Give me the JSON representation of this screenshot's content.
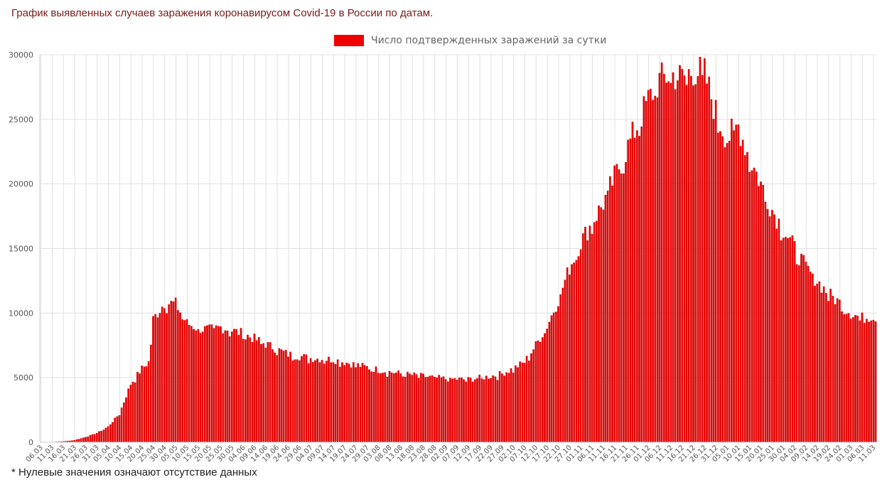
{
  "page": {
    "title": "График выявленных случаев заражения коронавирусом Covid-19 в России по датам.",
    "footnote": "* Нулевые значения означают отсутствие данных"
  },
  "colors": {
    "bar": "#ee0000",
    "bar_edge": "#b30000",
    "grid": "#e0e0e0",
    "axis_text": "#555555"
  },
  "chart_data": {
    "type": "bar",
    "title": "График выявленных случаев заражения коронавирусом Covid-19 в России по датам.",
    "legend": "Число подтвержденных заражений за сутки",
    "legend_position": "top-center",
    "ylim": [
      0,
      30000
    ],
    "yticks": [
      0,
      5000,
      10000,
      15000,
      20000,
      25000,
      30000
    ],
    "grid": true,
    "start_day": "2020-03-06",
    "xtick_labels": [
      "06.03",
      "11.03",
      "16.03",
      "21.03",
      "26.03",
      "31.03",
      "05.04",
      "10.04",
      "15.04",
      "20.04",
      "25.04",
      "30.04",
      "05.05",
      "10.05",
      "15.05",
      "20.05",
      "25.05",
      "30.05",
      "04.06",
      "09.06",
      "14.06",
      "19.06",
      "24.06",
      "29.06",
      "04.07",
      "09.07",
      "14.07",
      "19.07",
      "24.07",
      "29.07",
      "03.08",
      "08.08",
      "13.08",
      "18.08",
      "23.08",
      "28.08",
      "02.09",
      "07.09",
      "12.09",
      "17.09",
      "22.09",
      "27.09",
      "02.10",
      "07.10",
      "12.10",
      "17.10",
      "22.10",
      "27.10",
      "01.11",
      "06.11",
      "11.11",
      "16.11",
      "21.11",
      "26.11",
      "01.12",
      "06.12",
      "11.12",
      "16.12",
      "21.12",
      "26.12",
      "31.12",
      "05.01",
      "10.01",
      "15.01",
      "20.01",
      "25.01",
      "30.01",
      "04.02",
      "09.02",
      "14.02",
      "19.02",
      "24.02",
      "01.03",
      "06.03",
      "11.03"
    ],
    "anchor_days": [
      0,
      5,
      10,
      15,
      20,
      25,
      30,
      35,
      40,
      45,
      48,
      50,
      55,
      60,
      65,
      70,
      75,
      80,
      90,
      100,
      110,
      120,
      130,
      140,
      150,
      160,
      170,
      180,
      190,
      200,
      205,
      210,
      215,
      220,
      225,
      230,
      235,
      240,
      245,
      250,
      255,
      260,
      265,
      270,
      275,
      280,
      285,
      290,
      295,
      300,
      305,
      310,
      315,
      320,
      325,
      330,
      335,
      340,
      345,
      350,
      355,
      360,
      365,
      370
    ],
    "anchor_values": [
      3,
      10,
      60,
      150,
      400,
      700,
      1200,
      2200,
      4500,
      5700,
      6200,
      9500,
      10800,
      10700,
      9200,
      8800,
      8700,
      8900,
      8400,
      7600,
      6800,
      6500,
      6400,
      6000,
      5600,
      5300,
      5100,
      4900,
      4850,
      5100,
      5300,
      5700,
      6200,
      7500,
      9000,
      11000,
      13500,
      15500,
      17000,
      18500,
      20500,
      22500,
      24500,
      26500,
      28000,
      28500,
      28200,
      28800,
      28500,
      25500,
      23500,
      24500,
      22000,
      20000,
      18000,
      16500,
      15000,
      13500,
      12500,
      11500,
      10800,
      10000,
      9600,
      9800
    ],
    "bar_count": 372,
    "noise_seed": 7
  }
}
